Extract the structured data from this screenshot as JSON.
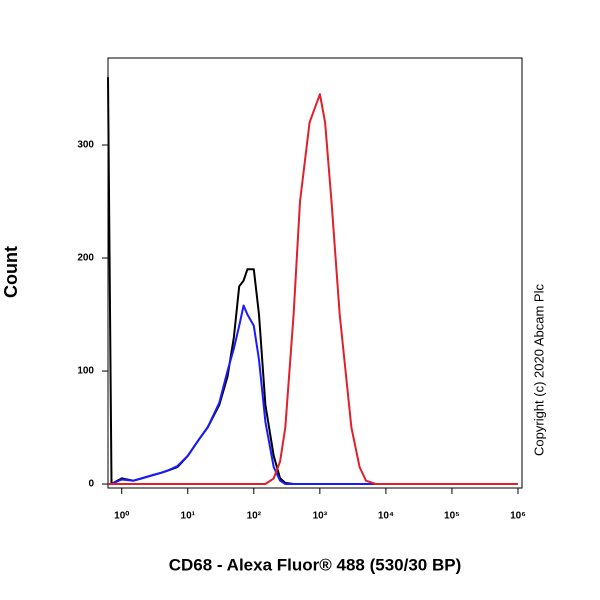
{
  "chart_data": {
    "type": "line",
    "x_label": "CD68 - Alexa Fluor® 488 (530/30 BP)",
    "y_label": "Count",
    "annotation": "Copyright (c) 2020 Abcam Plc",
    "xscale": "log",
    "xlim": [
      0.62,
      1150000
    ],
    "ylim": [
      -3.5,
      377
    ],
    "xticks": [
      {
        "value": 1,
        "label": "10⁰"
      },
      {
        "value": 10,
        "label": "10¹"
      },
      {
        "value": 100,
        "label": "10²"
      },
      {
        "value": 1000,
        "label": "10³"
      },
      {
        "value": 10000,
        "label": "10⁴"
      },
      {
        "value": 100000,
        "label": "10⁵"
      },
      {
        "value": 1000000,
        "label": "10⁶"
      }
    ],
    "yticks": [
      0,
      100,
      200,
      300
    ],
    "x": [
      0.62,
      0.7,
      1,
      1.5,
      2,
      3,
      4,
      5,
      7,
      10,
      15,
      20,
      30,
      40,
      50,
      60,
      70,
      80,
      100,
      120,
      150,
      200,
      250,
      300,
      400,
      500,
      700,
      1000,
      1200,
      1500,
      2000,
      3000,
      4000,
      5000,
      7000,
      10000,
      100000,
      1000000
    ],
    "series": [
      {
        "name": "Black",
        "color": "#000000",
        "values": [
          360,
          0,
          5,
          3,
          5,
          8,
          10,
          12,
          15,
          25,
          40,
          50,
          70,
          95,
          130,
          175,
          180,
          190,
          190,
          150,
          70,
          25,
          5,
          1,
          0,
          0,
          0,
          0,
          0,
          0,
          0,
          0,
          0,
          0,
          0,
          0,
          0,
          0
        ]
      },
      {
        "name": "Blue",
        "color": "#1a1aff",
        "values": [
          0,
          0,
          4,
          3,
          5,
          8,
          10,
          12,
          16,
          25,
          40,
          50,
          72,
          100,
          120,
          140,
          158,
          150,
          140,
          110,
          55,
          15,
          3,
          0,
          0,
          0,
          0,
          0,
          0,
          0,
          0,
          0,
          0,
          0,
          0,
          0,
          0,
          0
        ]
      },
      {
        "name": "Red",
        "color": "#e0202a",
        "values": [
          0,
          0,
          0,
          0,
          0,
          0,
          0,
          0,
          0,
          0,
          0,
          0,
          0,
          0,
          0,
          0,
          0,
          0,
          0,
          0,
          0,
          5,
          20,
          50,
          150,
          250,
          320,
          345,
          320,
          250,
          150,
          50,
          15,
          3,
          0,
          0,
          0,
          0
        ]
      }
    ]
  }
}
